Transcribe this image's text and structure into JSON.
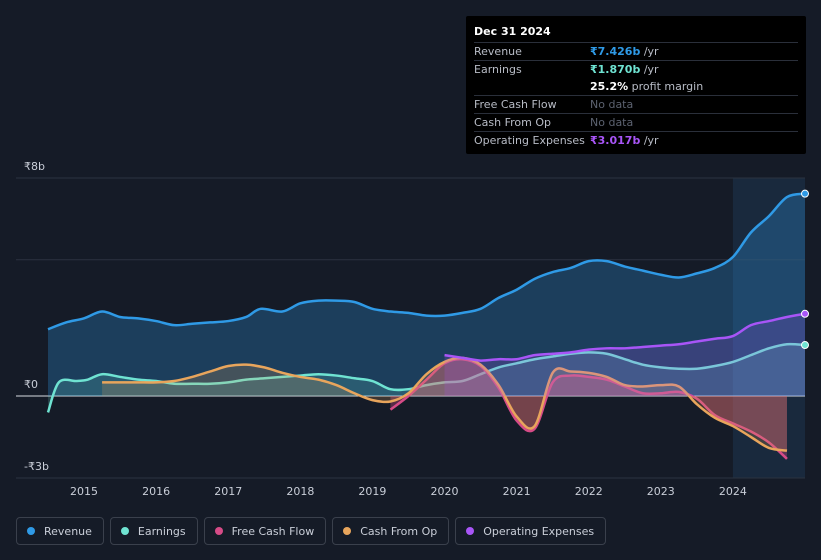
{
  "colors": {
    "revenue": "#2f9ae6",
    "earnings": "#6fe3d2",
    "free_cash_flow": "#d64b87",
    "cash_from_op": "#e8a55c",
    "operating_expenses": "#a855f7",
    "forecast_band": "#1d3550"
  },
  "tooltip": {
    "date": "Dec 31 2024",
    "rows": [
      {
        "label": "Revenue",
        "value": "₹7.426b",
        "unit": " /yr",
        "color": "#2f9ae6"
      },
      {
        "label": "Earnings",
        "value": "₹1.870b",
        "unit": " /yr",
        "color": "#6fe3d2"
      },
      {
        "label": "",
        "value": "25.2%",
        "unit": " profit margin",
        "color": "#ffffff"
      },
      {
        "label": "Free Cash Flow",
        "value": "No data",
        "unit": "",
        "color": "#5c6270"
      },
      {
        "label": "Cash From Op",
        "value": "No data",
        "unit": "",
        "color": "#5c6270"
      },
      {
        "label": "Operating Expenses",
        "value": "₹3.017b",
        "unit": " /yr",
        "color": "#a855f7"
      }
    ]
  },
  "legend": [
    {
      "label": "Revenue",
      "icon": "revenue-dot-icon",
      "color": "#2f9ae6"
    },
    {
      "label": "Earnings",
      "icon": "earnings-dot-icon",
      "color": "#6fe3d2"
    },
    {
      "label": "Free Cash Flow",
      "icon": "free-cash-flow-dot-icon",
      "color": "#d64b87"
    },
    {
      "label": "Cash From Op",
      "icon": "cash-from-op-dot-icon",
      "color": "#e8a55c"
    },
    {
      "label": "Operating Expenses",
      "icon": "operating-expenses-dot-icon",
      "color": "#a855f7"
    }
  ],
  "chart_data": {
    "type": "area",
    "title": "",
    "xlabel": "",
    "ylabel": "",
    "xlim": [
      2014.5,
      2025.0
    ],
    "ylim": [
      -3.0,
      8.0
    ],
    "y_tick_labels": [
      {
        "value": 8,
        "label": "₹8b"
      },
      {
        "value": 0,
        "label": "₹0"
      },
      {
        "value": -3,
        "label": "-₹3b"
      }
    ],
    "x_ticks": [
      2015,
      2016,
      2017,
      2018,
      2019,
      2020,
      2021,
      2022,
      2023,
      2024
    ],
    "x_tick_labels": [
      "2015",
      "2016",
      "2017",
      "2018",
      "2019",
      "2020",
      "2021",
      "2022",
      "2023",
      "2024"
    ],
    "forecast_start": 2024.0,
    "series": [
      {
        "name": "Revenue",
        "key": "revenue",
        "fill": true,
        "points": [
          [
            2014.5,
            2.45
          ],
          [
            2014.75,
            2.7
          ],
          [
            2015.0,
            2.85
          ],
          [
            2015.25,
            3.1
          ],
          [
            2015.5,
            2.9
          ],
          [
            2015.75,
            2.85
          ],
          [
            2016.0,
            2.75
          ],
          [
            2016.25,
            2.6
          ],
          [
            2016.5,
            2.65
          ],
          [
            2016.75,
            2.7
          ],
          [
            2017.0,
            2.75
          ],
          [
            2017.25,
            2.9
          ],
          [
            2017.45,
            3.2
          ],
          [
            2017.75,
            3.1
          ],
          [
            2018.0,
            3.4
          ],
          [
            2018.25,
            3.5
          ],
          [
            2018.5,
            3.5
          ],
          [
            2018.75,
            3.45
          ],
          [
            2019.0,
            3.2
          ],
          [
            2019.25,
            3.1
          ],
          [
            2019.5,
            3.05
          ],
          [
            2019.75,
            2.95
          ],
          [
            2020.0,
            2.95
          ],
          [
            2020.25,
            3.05
          ],
          [
            2020.5,
            3.2
          ],
          [
            2020.75,
            3.6
          ],
          [
            2021.0,
            3.9
          ],
          [
            2021.25,
            4.3
          ],
          [
            2021.5,
            4.55
          ],
          [
            2021.75,
            4.7
          ],
          [
            2022.0,
            4.95
          ],
          [
            2022.25,
            4.95
          ],
          [
            2022.5,
            4.75
          ],
          [
            2022.75,
            4.6
          ],
          [
            2023.0,
            4.45
          ],
          [
            2023.25,
            4.35
          ],
          [
            2023.5,
            4.5
          ],
          [
            2023.75,
            4.7
          ],
          [
            2024.0,
            5.1
          ],
          [
            2024.25,
            6.0
          ],
          [
            2024.5,
            6.6
          ],
          [
            2024.75,
            7.3
          ],
          [
            2025.0,
            7.426
          ]
        ]
      },
      {
        "name": "Earnings",
        "key": "earnings",
        "fill": true,
        "points": [
          [
            2014.5,
            -0.6
          ],
          [
            2014.65,
            0.5
          ],
          [
            2014.9,
            0.55
          ],
          [
            2015.05,
            0.6
          ],
          [
            2015.25,
            0.8
          ],
          [
            2015.5,
            0.7
          ],
          [
            2015.75,
            0.6
          ],
          [
            2016.0,
            0.55
          ],
          [
            2016.25,
            0.45
          ],
          [
            2016.5,
            0.45
          ],
          [
            2016.75,
            0.45
          ],
          [
            2017.0,
            0.5
          ],
          [
            2017.25,
            0.6
          ],
          [
            2017.5,
            0.65
          ],
          [
            2017.75,
            0.7
          ],
          [
            2018.0,
            0.75
          ],
          [
            2018.25,
            0.8
          ],
          [
            2018.5,
            0.75
          ],
          [
            2018.75,
            0.65
          ],
          [
            2019.0,
            0.55
          ],
          [
            2019.25,
            0.25
          ],
          [
            2019.5,
            0.25
          ],
          [
            2019.75,
            0.4
          ],
          [
            2020.0,
            0.5
          ],
          [
            2020.25,
            0.55
          ],
          [
            2020.5,
            0.8
          ],
          [
            2020.75,
            1.05
          ],
          [
            2021.0,
            1.2
          ],
          [
            2021.25,
            1.35
          ],
          [
            2021.5,
            1.45
          ],
          [
            2021.75,
            1.55
          ],
          [
            2022.0,
            1.6
          ],
          [
            2022.25,
            1.55
          ],
          [
            2022.5,
            1.35
          ],
          [
            2022.75,
            1.15
          ],
          [
            2023.0,
            1.05
          ],
          [
            2023.25,
            1.0
          ],
          [
            2023.5,
            1.0
          ],
          [
            2023.75,
            1.1
          ],
          [
            2024.0,
            1.25
          ],
          [
            2024.25,
            1.5
          ],
          [
            2024.5,
            1.75
          ],
          [
            2024.75,
            1.9
          ],
          [
            2025.0,
            1.87
          ]
        ]
      },
      {
        "name": "Free Cash Flow",
        "key": "free_cash_flow",
        "fill": true,
        "points": [
          [
            2019.25,
            -0.5
          ],
          [
            2019.5,
            0.0
          ],
          [
            2019.75,
            0.6
          ],
          [
            2020.0,
            1.2
          ],
          [
            2020.25,
            1.35
          ],
          [
            2020.5,
            1.1
          ],
          [
            2020.75,
            0.3
          ],
          [
            2021.0,
            -0.9
          ],
          [
            2021.25,
            -1.2
          ],
          [
            2021.5,
            0.5
          ],
          [
            2021.75,
            0.75
          ],
          [
            2022.0,
            0.7
          ],
          [
            2022.25,
            0.6
          ],
          [
            2022.5,
            0.35
          ],
          [
            2022.75,
            0.1
          ],
          [
            2023.0,
            0.1
          ],
          [
            2023.25,
            0.15
          ],
          [
            2023.5,
            -0.1
          ],
          [
            2023.75,
            -0.7
          ],
          [
            2024.0,
            -1.0
          ],
          [
            2024.25,
            -1.3
          ],
          [
            2024.5,
            -1.7
          ],
          [
            2024.75,
            -2.3
          ]
        ]
      },
      {
        "name": "Cash From Op",
        "key": "cash_from_op",
        "fill": true,
        "points": [
          [
            2015.25,
            0.5
          ],
          [
            2015.5,
            0.5
          ],
          [
            2015.75,
            0.5
          ],
          [
            2016.0,
            0.5
          ],
          [
            2016.25,
            0.55
          ],
          [
            2016.5,
            0.7
          ],
          [
            2016.75,
            0.9
          ],
          [
            2017.0,
            1.1
          ],
          [
            2017.25,
            1.15
          ],
          [
            2017.5,
            1.05
          ],
          [
            2017.75,
            0.85
          ],
          [
            2018.0,
            0.7
          ],
          [
            2018.25,
            0.6
          ],
          [
            2018.5,
            0.4
          ],
          [
            2018.75,
            0.1
          ],
          [
            2019.0,
            -0.15
          ],
          [
            2019.25,
            -0.2
          ],
          [
            2019.5,
            0.1
          ],
          [
            2019.75,
            0.8
          ],
          [
            2020.0,
            1.25
          ],
          [
            2020.25,
            1.4
          ],
          [
            2020.5,
            1.15
          ],
          [
            2020.75,
            0.4
          ],
          [
            2021.0,
            -0.75
          ],
          [
            2021.25,
            -1.1
          ],
          [
            2021.5,
            0.85
          ],
          [
            2021.75,
            0.9
          ],
          [
            2022.0,
            0.85
          ],
          [
            2022.25,
            0.7
          ],
          [
            2022.5,
            0.4
          ],
          [
            2022.75,
            0.35
          ],
          [
            2023.0,
            0.4
          ],
          [
            2023.25,
            0.35
          ],
          [
            2023.5,
            -0.3
          ],
          [
            2023.75,
            -0.8
          ],
          [
            2024.0,
            -1.1
          ],
          [
            2024.25,
            -1.5
          ],
          [
            2024.5,
            -1.9
          ],
          [
            2024.75,
            -2.0
          ]
        ]
      },
      {
        "name": "Operating Expenses",
        "key": "operating_expenses",
        "fill": true,
        "points": [
          [
            2020.0,
            1.5
          ],
          [
            2020.25,
            1.4
          ],
          [
            2020.5,
            1.3
          ],
          [
            2020.75,
            1.35
          ],
          [
            2021.0,
            1.35
          ],
          [
            2021.25,
            1.5
          ],
          [
            2021.5,
            1.55
          ],
          [
            2021.75,
            1.6
          ],
          [
            2022.0,
            1.7
          ],
          [
            2022.25,
            1.75
          ],
          [
            2022.5,
            1.75
          ],
          [
            2022.75,
            1.8
          ],
          [
            2023.0,
            1.85
          ],
          [
            2023.25,
            1.9
          ],
          [
            2023.5,
            2.0
          ],
          [
            2023.75,
            2.1
          ],
          [
            2024.0,
            2.2
          ],
          [
            2024.25,
            2.6
          ],
          [
            2024.5,
            2.75
          ],
          [
            2024.75,
            2.9
          ],
          [
            2025.0,
            3.017
          ]
        ]
      }
    ]
  }
}
